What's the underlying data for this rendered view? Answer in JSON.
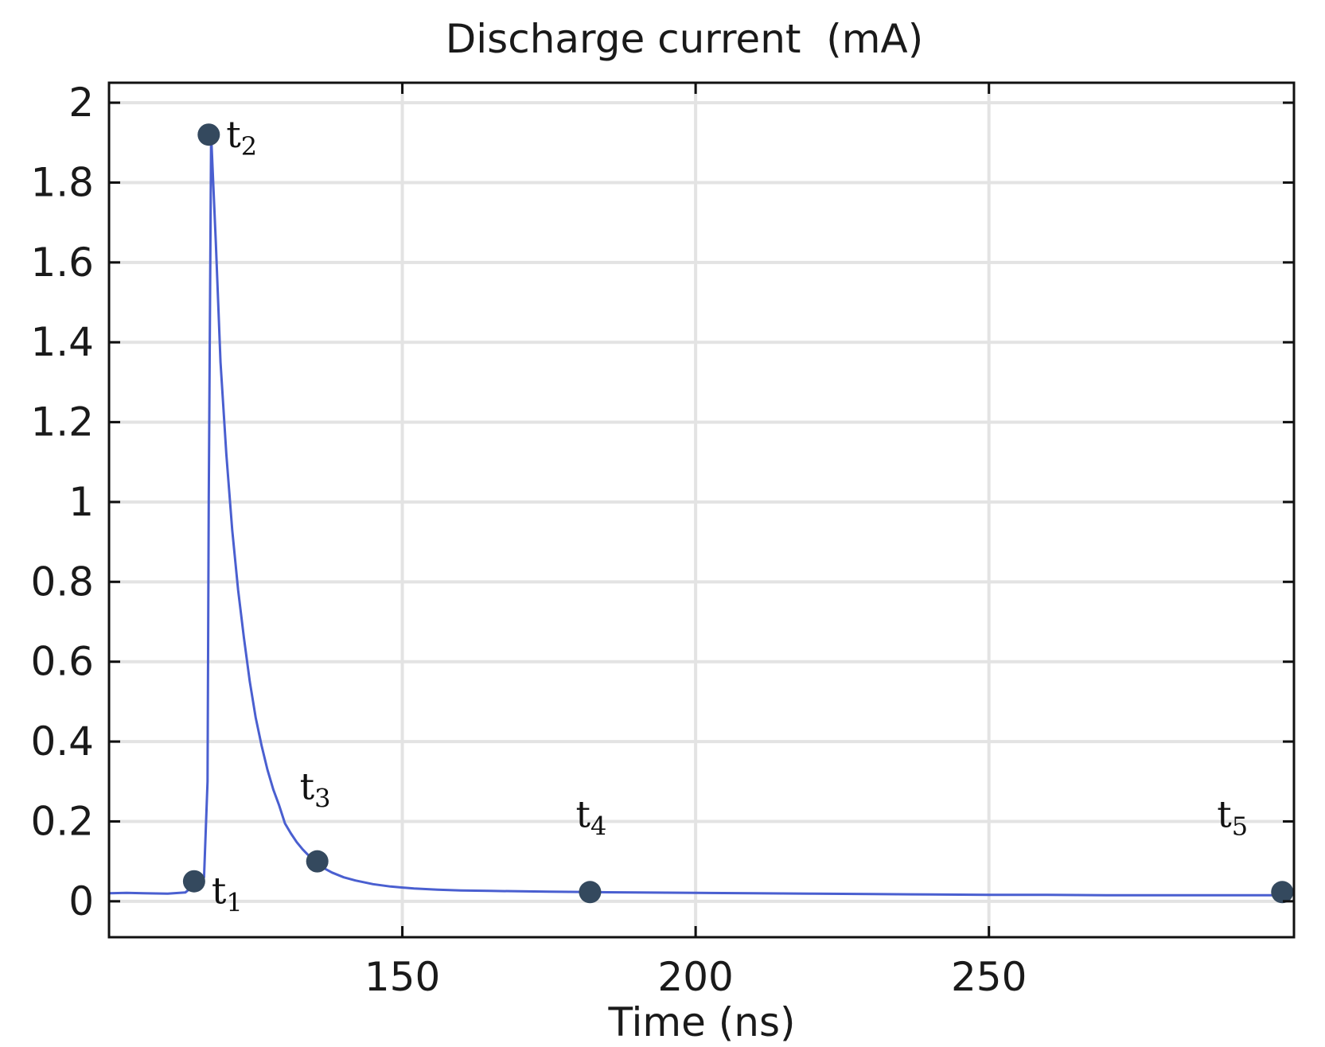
{
  "chart_data": {
    "type": "line",
    "title": "Discharge current  (mA)",
    "xlabel": "Time (ns)",
    "ylabel": "",
    "xlim": [
      100,
      302
    ],
    "ylim": [
      -0.09,
      2.05
    ],
    "xticks": [
      150,
      200,
      250
    ],
    "xtick_labels": [
      "150",
      "200",
      "250"
    ],
    "yticks": [
      0,
      0.2,
      0.4,
      0.6,
      0.8,
      1,
      1.2,
      1.4,
      1.6,
      1.8,
      2
    ],
    "ytick_labels": [
      "0",
      "0.2",
      "0.4",
      "0.6",
      "0.8",
      "1",
      "1.2",
      "1.4",
      "1.6",
      "1.8",
      "2"
    ],
    "grid": true,
    "line_color": "#4a5fd0",
    "marker_color": "#34495e",
    "series": [
      {
        "x": [
          100,
          103,
          106,
          110,
          113,
          114.5,
          115.5,
          116.2,
          116.8,
          117,
          117.4,
          118.2,
          119,
          120,
          121,
          122,
          123,
          124,
          125,
          126,
          127,
          128,
          129,
          130,
          131,
          132,
          133,
          134,
          135,
          136,
          138,
          140,
          142,
          145,
          148,
          152,
          156,
          160,
          165,
          170,
          175,
          182,
          190,
          200,
          210,
          220,
          230,
          240,
          250,
          260,
          270,
          280,
          290,
          300
        ],
        "y": [
          0.02,
          0.021,
          0.02,
          0.019,
          0.022,
          0.04,
          0.05,
          0.06,
          0.3,
          1.0,
          1.92,
          1.65,
          1.35,
          1.12,
          0.93,
          0.78,
          0.66,
          0.55,
          0.46,
          0.39,
          0.33,
          0.28,
          0.24,
          0.195,
          0.17,
          0.148,
          0.13,
          0.115,
          0.1,
          0.088,
          0.072,
          0.06,
          0.052,
          0.043,
          0.037,
          0.032,
          0.029,
          0.027,
          0.026,
          0.025,
          0.024,
          0.023,
          0.022,
          0.021,
          0.02,
          0.019,
          0.018,
          0.017,
          0.016,
          0.016,
          0.015,
          0.015,
          0.015,
          0.015
        ]
      }
    ],
    "markers": [
      {
        "label": "t",
        "sub": "1",
        "x": 114.5,
        "y": 0.05
      },
      {
        "label": "t",
        "sub": "2",
        "x": 117,
        "y": 1.92
      },
      {
        "label": "t",
        "sub": "3",
        "x": 135.5,
        "y": 0.1
      },
      {
        "label": "t",
        "sub": "4",
        "x": 182,
        "y": 0.023
      },
      {
        "label": "t",
        "sub": "5",
        "x": 300,
        "y": 0.023
      }
    ]
  }
}
